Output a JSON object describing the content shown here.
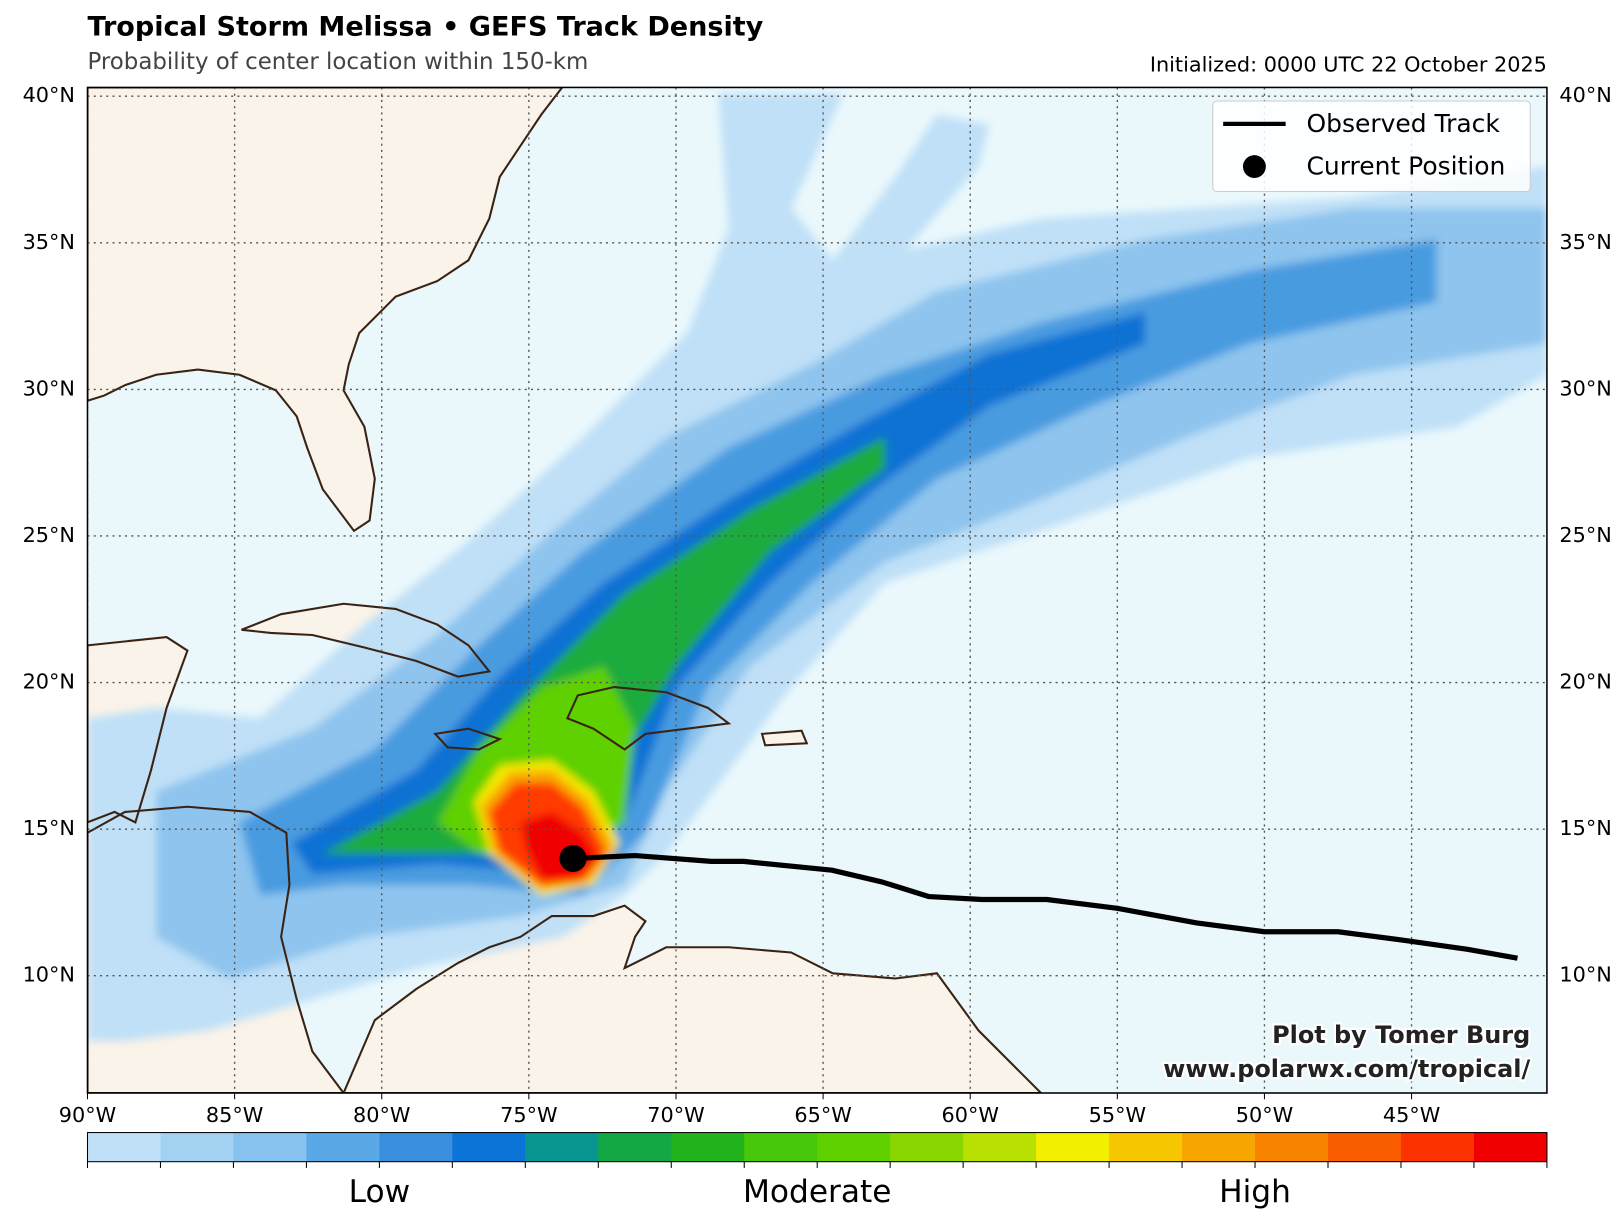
{
  "chart_data": {
    "type": "map",
    "title": "Tropical Storm Melissa • GEFS Track Density",
    "subtitle": "Probability of center location within 150-km",
    "initialized": "Initialized: 0000 UTC 22 October 2025",
    "xlim": [
      -90,
      -40.4
    ],
    "ylim": [
      6,
      40.3
    ],
    "xticks": [
      {
        "value": -90,
        "label": "90°W"
      },
      {
        "value": -85,
        "label": "85°W"
      },
      {
        "value": -80,
        "label": "80°W"
      },
      {
        "value": -75,
        "label": "75°W"
      },
      {
        "value": -70,
        "label": "70°W"
      },
      {
        "value": -65,
        "label": "65°W"
      },
      {
        "value": -60,
        "label": "60°W"
      },
      {
        "value": -55,
        "label": "55°W"
      },
      {
        "value": -50,
        "label": "50°W"
      },
      {
        "value": -45,
        "label": "45°W"
      }
    ],
    "yticks": [
      {
        "value": 10,
        "label": "10°N"
      },
      {
        "value": 15,
        "label": "15°N"
      },
      {
        "value": 20,
        "label": "20°N"
      },
      {
        "value": 25,
        "label": "25°N"
      },
      {
        "value": 30,
        "label": "30°N"
      },
      {
        "value": 35,
        "label": "35°N"
      },
      {
        "value": 40,
        "label": "40°N"
      }
    ],
    "grid": true,
    "series": [
      {
        "name": "Observed Track",
        "color": "#000000",
        "x": [
          -73.5,
          -71.4,
          -68.8,
          -67.7,
          -64.7,
          -63,
          -61.4,
          -59.6,
          -57.4,
          -55,
          -52.3,
          -50,
          -47.5,
          -45.2,
          -43.1,
          -41.4
        ],
        "values": [
          14.0,
          14.1,
          13.9,
          13.9,
          13.6,
          13.2,
          12.7,
          12.6,
          12.6,
          12.3,
          11.8,
          11.5,
          11.5,
          11.2,
          10.9,
          10.6
        ]
      },
      {
        "name": "Current Position",
        "color": "#000000",
        "x": [
          -73.5
        ],
        "values": [
          14.0
        ]
      }
    ],
    "legend": "upper right",
    "colorbar": {
      "colors": [
        "#bfe0f7",
        "#a3d1f2",
        "#87c1ee",
        "#5aa8e6",
        "#3a8fdc",
        "#0b74d6",
        "#0a9690",
        "#14a845",
        "#21b41c",
        "#48c80a",
        "#5fd000",
        "#8ad600",
        "#b8e000",
        "#f2ef00",
        "#f6c700",
        "#f7a600",
        "#f88400",
        "#fa5c00",
        "#fc3200",
        "#f00000"
      ],
      "labels": [
        "Low",
        "Moderate",
        "High"
      ]
    },
    "credit": [
      "Plot by Tomer Burg",
      "www.polarwx.com/tropical/"
    ]
  }
}
